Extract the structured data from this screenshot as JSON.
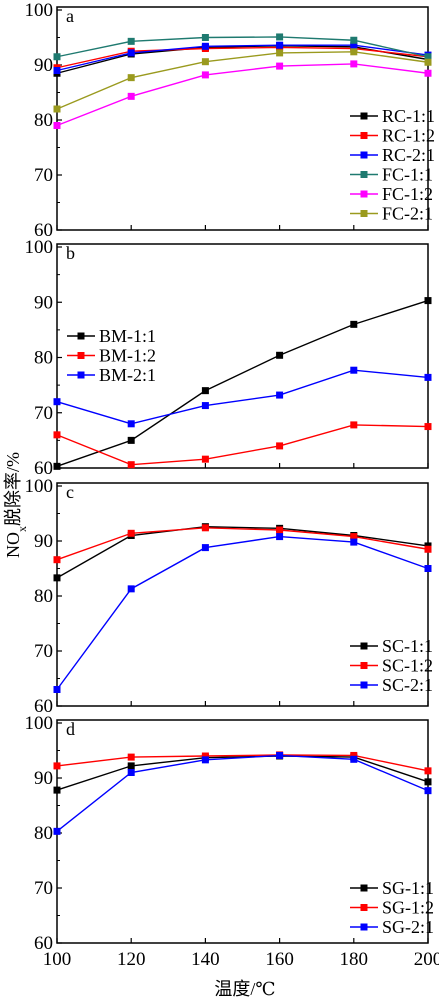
{
  "chart_data": [
    {
      "type": "line",
      "panel": "a",
      "x": [
        100,
        120,
        140,
        160,
        180,
        200
      ],
      "xlim": [
        100,
        200
      ],
      "ylim": [
        60,
        100
      ],
      "yticks": [
        "60",
        "70",
        "80",
        "90",
        "100"
      ],
      "legend_position": "lower-right",
      "series": [
        {
          "name": "RC-1:1",
          "color": "#000000",
          "values": [
            88.5,
            92.0,
            93.2,
            93.5,
            93.3,
            91.0
          ]
        },
        {
          "name": "RC-1:2",
          "color": "#ff0000",
          "values": [
            89.5,
            92.5,
            93.0,
            93.2,
            93.0,
            91.5
          ]
        },
        {
          "name": "RC-2:1",
          "color": "#0000ff",
          "values": [
            89.0,
            92.2,
            93.4,
            93.6,
            93.6,
            91.8
          ]
        },
        {
          "name": "FC-1:1",
          "color": "#1f7a70",
          "values": [
            91.5,
            94.3,
            95.0,
            95.1,
            94.5,
            91.5
          ]
        },
        {
          "name": "FC-1:2",
          "color": "#ff00ff",
          "values": [
            79.0,
            84.3,
            88.2,
            89.8,
            90.2,
            88.5
          ]
        },
        {
          "name": "FC-2:1",
          "color": "#9a9a1e",
          "values": [
            82.0,
            87.7,
            90.6,
            92.2,
            92.4,
            90.5
          ]
        }
      ]
    },
    {
      "type": "line",
      "panel": "b",
      "x": [
        100,
        120,
        140,
        160,
        180,
        200
      ],
      "xlim": [
        100,
        200
      ],
      "ylim": [
        60,
        100
      ],
      "yticks": [
        "60",
        "70",
        "80",
        "90",
        "100"
      ],
      "legend_position": "middle-left",
      "series": [
        {
          "name": "BM-1:1",
          "color": "#000000",
          "values": [
            60.3,
            65.0,
            74.0,
            80.4,
            86.0,
            90.3
          ]
        },
        {
          "name": "BM-1:2",
          "color": "#ff0000",
          "values": [
            66.0,
            60.6,
            61.6,
            64.0,
            67.8,
            67.5
          ]
        },
        {
          "name": "BM-2:1",
          "color": "#0000ff",
          "values": [
            72.0,
            68.0,
            71.3,
            73.2,
            77.7,
            76.4
          ]
        }
      ]
    },
    {
      "type": "line",
      "panel": "c",
      "x": [
        100,
        120,
        140,
        160,
        180,
        200
      ],
      "xlim": [
        100,
        200
      ],
      "ylim": [
        60,
        100
      ],
      "yticks": [
        "60",
        "70",
        "80",
        "90",
        "100"
      ],
      "legend_position": "lower-right",
      "series": [
        {
          "name": "SC-1:1",
          "color": "#000000",
          "values": [
            83.3,
            91.0,
            92.6,
            92.3,
            91.0,
            89.1
          ]
        },
        {
          "name": "SC-1:2",
          "color": "#ff0000",
          "values": [
            86.6,
            91.4,
            92.4,
            92.0,
            90.8,
            88.5
          ]
        },
        {
          "name": "SC-2:1",
          "color": "#0000ff",
          "values": [
            63.0,
            81.3,
            88.8,
            90.8,
            89.8,
            85.0
          ]
        }
      ]
    },
    {
      "type": "line",
      "panel": "d",
      "x": [
        100,
        120,
        140,
        160,
        180,
        200
      ],
      "xlim": [
        100,
        200
      ],
      "ylim": [
        60,
        100
      ],
      "yticks": [
        "60",
        "70",
        "80",
        "90",
        "100"
      ],
      "xticks": [
        "100",
        "120",
        "140",
        "160",
        "180",
        "200"
      ],
      "legend_position": "lower-right",
      "series": [
        {
          "name": "SG-1:1",
          "color": "#000000",
          "values": [
            87.8,
            92.2,
            93.7,
            94.0,
            93.8,
            89.3
          ]
        },
        {
          "name": "SG-1:2",
          "color": "#ff0000",
          "values": [
            92.2,
            93.8,
            94.0,
            94.2,
            94.1,
            91.3
          ]
        },
        {
          "name": "SG-2:1",
          "color": "#0000ff",
          "values": [
            80.3,
            91.0,
            93.3,
            94.1,
            93.4,
            87.7
          ]
        }
      ]
    }
  ],
  "xlabel": "温度/℃",
  "ylabel": "NOx脱除率/%",
  "ylabel_main": "NO",
  "ylabel_sub": "x",
  "ylabel_rest": "脱除率/%"
}
